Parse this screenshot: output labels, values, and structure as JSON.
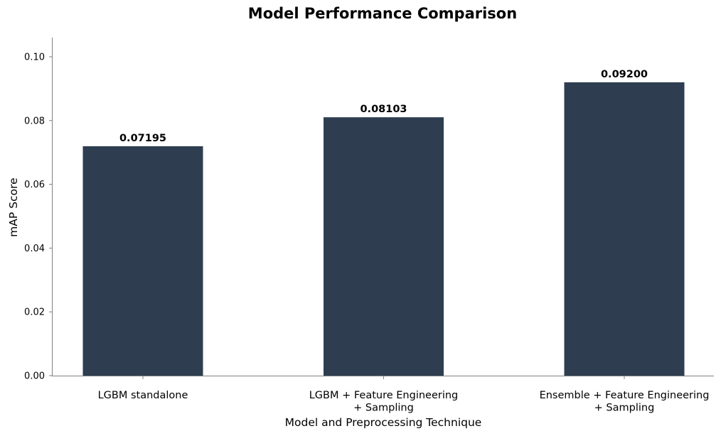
{
  "chart_data": {
    "type": "bar",
    "title": "Model Performance Comparison",
    "xlabel": "Model and Preprocessing Technique",
    "ylabel": "mAP Score",
    "categories": [
      [
        "LGBM standalone"
      ],
      [
        "LGBM + Feature Engineering",
        "+ Sampling"
      ],
      [
        "Ensemble + Feature Engineering",
        "+ Sampling"
      ]
    ],
    "values": [
      0.07195,
      0.08103,
      0.092
    ],
    "value_labels": [
      "0.07195",
      "0.08103",
      "0.09200"
    ],
    "ylim": [
      0,
      0.106
    ],
    "yticks": [
      0,
      0.02,
      0.04,
      0.06,
      0.08,
      0.1
    ],
    "ytick_labels": [
      "0.00",
      "0.02",
      "0.04",
      "0.06",
      "0.08",
      "0.10"
    ],
    "grid": false,
    "legend": "none",
    "bar_color": "#2e3e50"
  }
}
